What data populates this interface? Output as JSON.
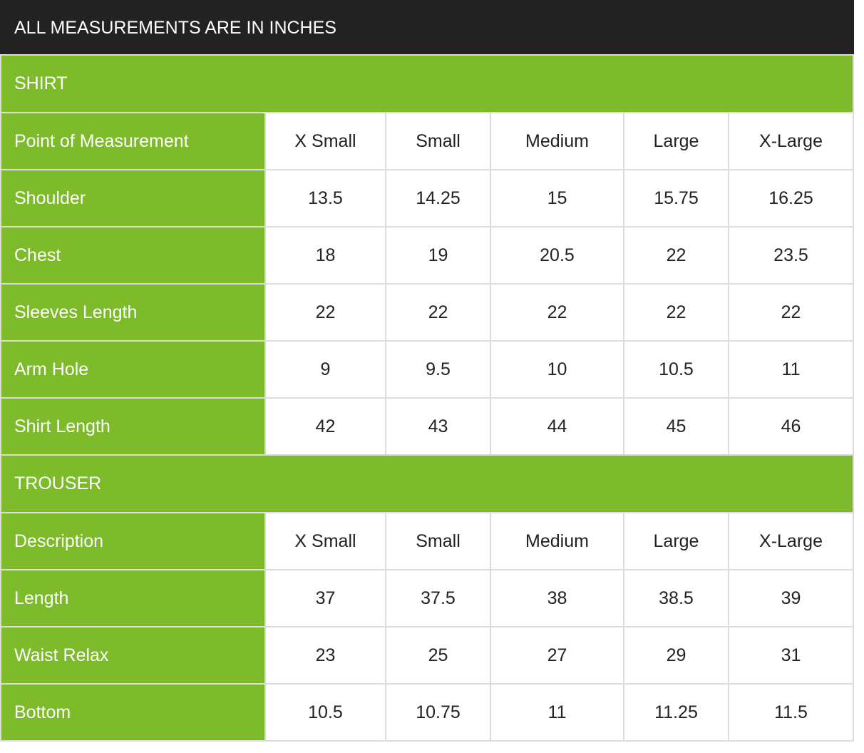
{
  "title": "ALL MEASUREMENTS ARE IN INCHES",
  "colors": {
    "header_bg": "#222222",
    "accent_green": "#7dbb2a",
    "border": "#dcdcdc",
    "text": "#222222"
  },
  "shirt": {
    "section_label": "SHIRT",
    "header": {
      "label": "Point of Measurement",
      "sizes": [
        "X Small",
        "Small",
        "Medium",
        "Large",
        "X-Large"
      ]
    },
    "rows": [
      {
        "label": "Shoulder",
        "values": [
          "13.5",
          "14.25",
          "15",
          "15.75",
          "16.25"
        ]
      },
      {
        "label": "Chest",
        "values": [
          "18",
          "19",
          "20.5",
          "22",
          "23.5"
        ]
      },
      {
        "label": "Sleeves Length",
        "values": [
          "22",
          "22",
          "22",
          "22",
          "22"
        ]
      },
      {
        "label": "Arm Hole",
        "values": [
          "9",
          "9.5",
          "10",
          "10.5",
          "11"
        ]
      },
      {
        "label": "Shirt Length",
        "values": [
          "42",
          "43",
          "44",
          "45",
          "46"
        ]
      }
    ]
  },
  "trouser": {
    "section_label": "TROUSER",
    "header": {
      "label": "Description",
      "sizes": [
        "X Small",
        "Small",
        "Medium",
        "Large",
        "X-Large"
      ]
    },
    "rows": [
      {
        "label": "Length",
        "values": [
          "37",
          "37.5",
          "38",
          "38.5",
          "39"
        ]
      },
      {
        "label": "Waist Relax",
        "values": [
          "23",
          "25",
          "27",
          "29",
          "31"
        ]
      },
      {
        "label": "Bottom",
        "values": [
          "10.5",
          "10.75",
          "11",
          "11.25",
          "11.5"
        ]
      }
    ]
  }
}
